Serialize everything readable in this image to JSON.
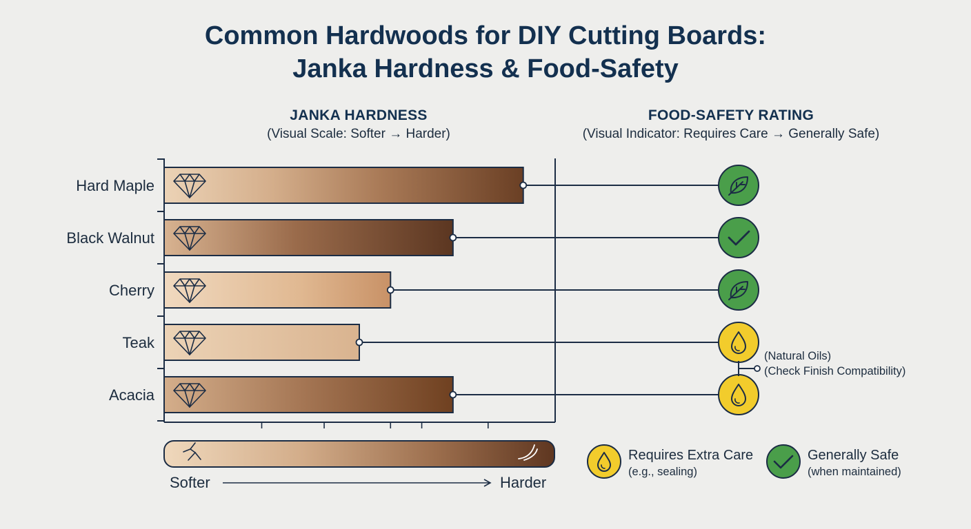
{
  "title_lines": [
    "Common Hardwoods for DIY Cutting Boards:",
    "Janka Hardness & Food-Safety"
  ],
  "chart_data": {
    "type": "bar",
    "orientation": "horizontal",
    "title": "Common Hardwoods for DIY Cutting Boards: Janka Hardness & Food-Safety",
    "hardness_header": "JANKA HARDNESS",
    "hardness_subheader": "(Visual Scale: Softer → Harder)",
    "safety_header": "FOOD-SAFETY RATING",
    "safety_subheader": "(Visual Indicator: Requires Care → Generally Safe)",
    "categories": [
      "Hard Maple",
      "Black Walnut",
      "Cherry",
      "Teak",
      "Acacia"
    ],
    "values": [
      0.92,
      0.74,
      0.58,
      0.5,
      0.74
    ],
    "value_scale": "relative hardness, 0 = softer, 1 = harder",
    "safety": [
      "generally-safe",
      "generally-safe",
      "generally-safe",
      "requires-extra-care",
      "requires-extra-care"
    ],
    "safety_icons": [
      "leaf-icon",
      "check-icon",
      "leaf-icon",
      "drop-icon",
      "drop-icon"
    ],
    "notes": [
      "(Natural Oils)",
      "(Check Finish Compatibility)"
    ],
    "scale": {
      "left": "Softer",
      "right": "Harder"
    },
    "legend": [
      {
        "key": "requires-extra-care",
        "icon": "drop-icon",
        "label": "Requires Extra Care",
        "sub": "(e.g., sealing)",
        "color": "#f2cc2c"
      },
      {
        "key": "generally-safe",
        "icon": "check-icon",
        "label": "Generally Safe",
        "sub": "(when maintained)",
        "color": "#4a9e4a"
      }
    ],
    "colors": {
      "wood_light": "#e9cfb1",
      "wood_dark": "#6a3f24",
      "safe": "#4a9e4a",
      "care": "#f2cc2c",
      "line": "#1b2c44"
    }
  }
}
